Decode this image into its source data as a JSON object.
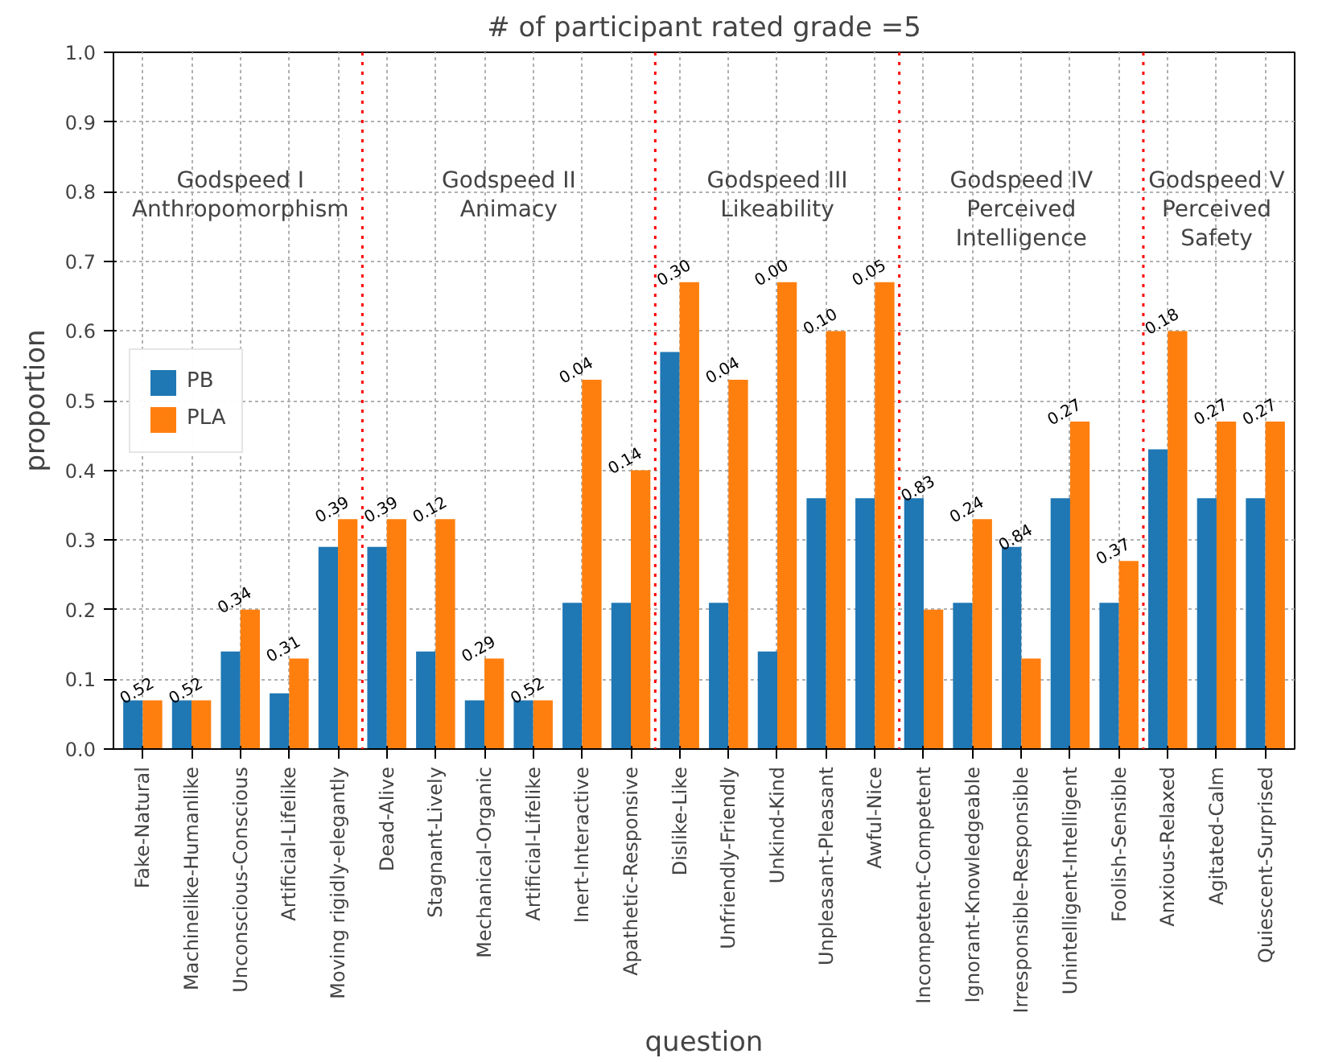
{
  "chart_data": {
    "type": "bar",
    "title": "# of participant rated grade =5",
    "xlabel": "question",
    "ylabel": "proportion",
    "categories": [
      "Fake-Natural",
      "Machinelike-Humanlike",
      "Unconscious-Conscious",
      "Artificial-Lifelike",
      "Moving rigidly-elegantly",
      "Dead-Alive",
      "Stagnant-Lively",
      "Mechanical-Organic",
      "Artificial-Lifelike",
      "Inert-Interactive",
      "Apathetic-Responsive",
      "Dislike-Like",
      "Unfriendly-Friendly",
      "Unkind-Kind",
      "Unpleasant-Pleasant",
      "Awful-Nice",
      "Incompetent-Competent",
      "Ignorant-Knowledgeable",
      "Irresponsible-Responsible",
      "Unintelligent-Intelligent",
      "Foolish-Sensible",
      "Anxious-Relaxed",
      "Agitated-Calm",
      "Quiescent-Surprised"
    ],
    "series": [
      {
        "name": "PB",
        "color": "#1f77b4",
        "values": [
          0.07,
          0.07,
          0.14,
          0.08,
          0.29,
          0.29,
          0.14,
          0.07,
          0.07,
          0.21,
          0.21,
          0.57,
          0.21,
          0.14,
          0.36,
          0.36,
          0.36,
          0.21,
          0.29,
          0.36,
          0.21,
          0.43,
          0.36,
          0.36
        ]
      },
      {
        "name": "PLA",
        "color": "#ff7f0e",
        "values": [
          0.07,
          0.07,
          0.2,
          0.13,
          0.33,
          0.33,
          0.33,
          0.13,
          0.07,
          0.53,
          0.4,
          0.67,
          0.53,
          0.67,
          0.6,
          0.67,
          0.2,
          0.33,
          0.13,
          0.47,
          0.27,
          0.6,
          0.47,
          0.47
        ]
      }
    ],
    "ylim": [
      0,
      1.0
    ],
    "yticks": [
      {
        "value": 0,
        "label": "0.0"
      },
      0.1,
      0.2,
      0.3,
      0.4,
      0.5,
      0.6,
      0.7,
      0.8,
      0.9,
      {
        "value": 1,
        "label": "1.0"
      }
    ],
    "grid": true,
    "legend": "left",
    "annotations": [
      "Godspeed I\nAnthropomorphism",
      "Godspeed II\nAnimacy",
      "Godspeed III\nLikeability",
      "Godspeed IV\nPerceived\nIntelligence",
      "Godspeed V\nPerceived\nSafety",
      {
        "text": "0.52",
        "x": "Fake-Natural",
        "y": 0.07
      },
      {
        "text": "0.52",
        "x": "Machinelike-Humanlike",
        "y": 0.07
      },
      {
        "text": "0.34",
        "x": "Unconscious-Conscious",
        "y": 0.2
      },
      {
        "text": "0.31",
        "x": "Artificial-Lifelike",
        "y": 0.13
      },
      {
        "text": "0.39",
        "x": "Moving rigidly-elegantly",
        "y": 0.33
      },
      {
        "text": "0.39",
        "x": "Dead-Alive",
        "y": 0.33
      },
      {
        "text": "0.12",
        "x": "Stagnant-Lively",
        "y": 0.33
      },
      {
        "text": "0.29",
        "x": "Mechanical-Organic",
        "y": 0.13
      },
      {
        "text": "0.52",
        "y": 0.07
      },
      {
        "text": "0.04",
        "x": "Inert-Interactive",
        "y": 0.53
      },
      {
        "text": "0.14",
        "x": "Apathetic-Responsive",
        "y": 0.4
      },
      {
        "text": "0.30",
        "x": "Dislike-Like",
        "y": 0.67
      },
      {
        "text": "0.04",
        "x": "Unfriendly-Friendly",
        "y": 0.53
      },
      {
        "text": "0.00",
        "x": "Unkind-Kind",
        "y": 0.67
      },
      {
        "text": "0.10",
        "x": "Unpleasant-Pleasant",
        "y": 0.6
      },
      {
        "text": "0.05",
        "x": "Awful-Nice",
        "y": 0.67
      },
      {
        "text": "0.83",
        "x": "Incompetent-Competent",
        "y": 0.36
      },
      {
        "text": "0.24",
        "x": "Ignorant-Knowledgeable",
        "y": 0.33
      },
      {
        "text": "0.84",
        "x": "Irresponsible-Responsible",
        "y": 0.29
      },
      {
        "text": "0.27",
        "x": "Unintelligent-Intelligent",
        "y": 0.47
      },
      {
        "text": "0.37",
        "x": "Foolish-Sensible",
        "y": 0.27
      },
      {
        "text": "0.18",
        "x": "Anxious-Relaxed",
        "y": 0.6
      },
      {
        "text": "0.27",
        "x": "Agitated-Calm",
        "y": 0.47
      },
      {
        "text": "0.27",
        "x": "Quiescent-Surprised",
        "y": 0.47
      }
    ]
  }
}
